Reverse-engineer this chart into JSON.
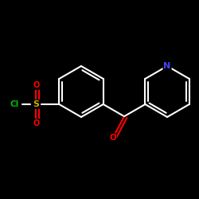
{
  "background_color": "#000000",
  "bond_color": "#ffffff",
  "atom_colors": {
    "O": "#ff0000",
    "S": "#ccaa00",
    "Cl": "#00bb00",
    "N": "#4444ff",
    "C": "#ffffff"
  },
  "figsize": [
    2.5,
    2.5
  ],
  "dpi": 100,
  "lw": 1.5,
  "bl": 0.32,
  "sep": 0.038
}
